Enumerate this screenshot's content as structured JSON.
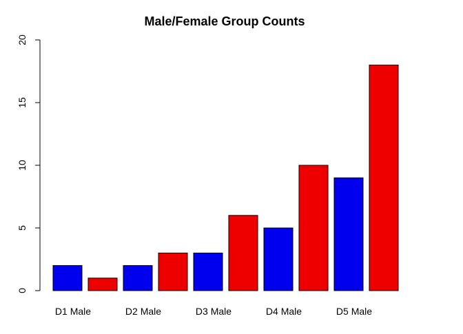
{
  "chart_data": {
    "type": "bar",
    "title": "Male/Female Group Counts",
    "xlabel": "",
    "ylabel": "",
    "ylim": [
      0,
      20
    ],
    "yticks": [
      0,
      5,
      10,
      15,
      20
    ],
    "categories": [
      "D1 Male",
      "",
      "D2 Male",
      "",
      "D3 Male",
      "",
      "D4 Male",
      "",
      "D5 Male",
      ""
    ],
    "values": [
      2,
      1,
      2,
      3,
      3,
      6,
      5,
      10,
      9,
      18
    ],
    "colors": [
      "#0000ee",
      "#ee0000",
      "#0000ee",
      "#ee0000",
      "#0000ee",
      "#ee0000",
      "#0000ee",
      "#ee0000",
      "#0000ee",
      "#ee0000"
    ],
    "grid": false,
    "legend": "none"
  }
}
